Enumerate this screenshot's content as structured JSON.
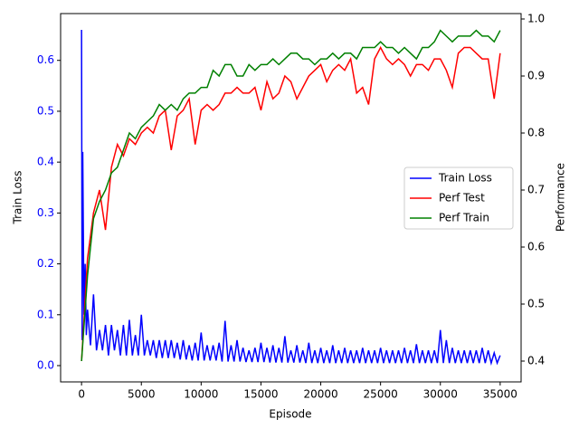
{
  "chart_data": {
    "type": "line",
    "xlabel": "Episode",
    "ylabel": "Train Loss",
    "y2label": "Performance",
    "xlim": [
      -1750,
      36750
    ],
    "ylim": [
      -0.032,
      0.692
    ],
    "y2lim": [
      0.3635,
      1.0095
    ],
    "xticks": [
      0,
      5000,
      10000,
      15000,
      20000,
      25000,
      30000,
      35000
    ],
    "yticks": [
      {
        "value": 0,
        "label": "0.0"
      },
      0.1,
      0.2,
      0.3,
      0.4,
      0.5,
      0.6
    ],
    "y2ticks": [
      0.4,
      0.5,
      0.6,
      0.7,
      0.8,
      0.9,
      {
        "value": 1,
        "label": "1.0"
      }
    ],
    "ylabel_color": "#0000ff",
    "legend": "right",
    "series": [
      {
        "name": "Train Loss",
        "color": "#0000ff",
        "x": [
          0,
          50,
          100,
          200,
          300,
          400,
          500,
          750,
          1000,
          1250,
          1500,
          1750,
          2000,
          2250,
          2500,
          2750,
          3000,
          3250,
          3500,
          3750,
          4000,
          4250,
          4500,
          4750,
          5000,
          5250,
          5500,
          5750,
          6000,
          6250,
          6500,
          6750,
          7000,
          7250,
          7500,
          7750,
          8000,
          8250,
          8500,
          8750,
          9000,
          9250,
          9500,
          9750,
          10000,
          10250,
          10500,
          10750,
          11000,
          11250,
          11500,
          11750,
          12000,
          12250,
          12500,
          12750,
          13000,
          13250,
          13500,
          13750,
          14000,
          14250,
          14500,
          14750,
          15000,
          15250,
          15500,
          15750,
          16000,
          16250,
          16500,
          16750,
          17000,
          17250,
          17500,
          17750,
          18000,
          18250,
          18500,
          18750,
          19000,
          19250,
          19500,
          19750,
          20000,
          20250,
          20500,
          20750,
          21000,
          21250,
          21500,
          21750,
          22000,
          22250,
          22500,
          22750,
          23000,
          23250,
          23500,
          23750,
          24000,
          24250,
          24500,
          24750,
          25000,
          25250,
          25500,
          25750,
          26000,
          26250,
          26500,
          26750,
          27000,
          27250,
          27500,
          27750,
          28000,
          28250,
          28500,
          28750,
          29000,
          29250,
          29500,
          29750,
          30000,
          30250,
          30500,
          30750,
          31000,
          31250,
          31500,
          31750,
          32000,
          32250,
          32500,
          32750,
          33000,
          33250,
          33500,
          33750,
          34000,
          34250,
          34500,
          34750,
          35000
        ],
        "values": [
          0.66,
          0.05,
          0.42,
          0.1,
          0.2,
          0.06,
          0.11,
          0.04,
          0.14,
          0.03,
          0.07,
          0.03,
          0.08,
          0.02,
          0.08,
          0.03,
          0.07,
          0.02,
          0.08,
          0.02,
          0.09,
          0.02,
          0.06,
          0.02,
          0.1,
          0.02,
          0.05,
          0.02,
          0.05,
          0.015,
          0.05,
          0.015,
          0.05,
          0.015,
          0.05,
          0.015,
          0.045,
          0.012,
          0.05,
          0.012,
          0.04,
          0.01,
          0.045,
          0.01,
          0.065,
          0.01,
          0.04,
          0.01,
          0.04,
          0.01,
          0.045,
          0.008,
          0.088,
          0.008,
          0.04,
          0.008,
          0.05,
          0.008,
          0.035,
          0.007,
          0.03,
          0.007,
          0.035,
          0.007,
          0.045,
          0.007,
          0.035,
          0.006,
          0.04,
          0.006,
          0.035,
          0.006,
          0.058,
          0.006,
          0.03,
          0.006,
          0.04,
          0.006,
          0.03,
          0.005,
          0.045,
          0.005,
          0.03,
          0.005,
          0.035,
          0.005,
          0.03,
          0.005,
          0.04,
          0.005,
          0.03,
          0.005,
          0.035,
          0.005,
          0.03,
          0.005,
          0.03,
          0.005,
          0.035,
          0.005,
          0.03,
          0.005,
          0.03,
          0.005,
          0.035,
          0.005,
          0.03,
          0.005,
          0.03,
          0.005,
          0.03,
          0.005,
          0.035,
          0.005,
          0.03,
          0.005,
          0.042,
          0.005,
          0.03,
          0.005,
          0.03,
          0.005,
          0.03,
          0.005,
          0.07,
          0.005,
          0.05,
          0.005,
          0.035,
          0.005,
          0.03,
          0.005,
          0.03,
          0.005,
          0.03,
          0.005,
          0.03,
          0.005,
          0.035,
          0.005,
          0.03,
          0.005,
          0.025,
          0.005,
          0.02
        ]
      },
      {
        "name": "Perf Test",
        "color": "#ff0000",
        "axis": "y2",
        "x": [
          0,
          500,
          1000,
          1500,
          2000,
          2500,
          3000,
          3500,
          4000,
          4500,
          5000,
          5500,
          6000,
          6500,
          7000,
          7500,
          8000,
          8500,
          9000,
          9500,
          10000,
          10500,
          11000,
          11500,
          12000,
          12500,
          13000,
          13500,
          14000,
          14500,
          15000,
          15500,
          16000,
          16500,
          17000,
          17500,
          18000,
          18500,
          19000,
          19500,
          20000,
          20500,
          21000,
          21500,
          22000,
          22500,
          23000,
          23500,
          24000,
          24500,
          25000,
          25500,
          26000,
          26500,
          27000,
          27500,
          28000,
          28500,
          29000,
          29500,
          30000,
          30500,
          31000,
          31500,
          32000,
          32500,
          33000,
          33500,
          34000,
          34500,
          35000
        ],
        "values": [
          0.4,
          0.58,
          0.66,
          0.7,
          0.63,
          0.74,
          0.78,
          0.76,
          0.79,
          0.78,
          0.8,
          0.81,
          0.8,
          0.83,
          0.84,
          0.77,
          0.83,
          0.84,
          0.86,
          0.78,
          0.84,
          0.85,
          0.84,
          0.85,
          0.87,
          0.87,
          0.88,
          0.87,
          0.87,
          0.88,
          0.84,
          0.89,
          0.86,
          0.87,
          0.9,
          0.89,
          0.86,
          0.88,
          0.9,
          0.91,
          0.92,
          0.89,
          0.91,
          0.92,
          0.91,
          0.93,
          0.87,
          0.88,
          0.85,
          0.93,
          0.95,
          0.93,
          0.92,
          0.93,
          0.92,
          0.9,
          0.92,
          0.92,
          0.91,
          0.93,
          0.93,
          0.91,
          0.88,
          0.94,
          0.95,
          0.95,
          0.94,
          0.93,
          0.93,
          0.86,
          0.94
        ]
      },
      {
        "name": "Perf Train",
        "color": "#008000",
        "axis": "y2",
        "x": [
          0,
          500,
          1000,
          1500,
          2000,
          2500,
          3000,
          3500,
          4000,
          4500,
          5000,
          5500,
          6000,
          6500,
          7000,
          7500,
          8000,
          8500,
          9000,
          9500,
          10000,
          10500,
          11000,
          11500,
          12000,
          12500,
          13000,
          13500,
          14000,
          14500,
          15000,
          15500,
          16000,
          16500,
          17000,
          17500,
          18000,
          18500,
          19000,
          19500,
          20000,
          20500,
          21000,
          21500,
          22000,
          22500,
          23000,
          23500,
          24000,
          24500,
          25000,
          25500,
          26000,
          26500,
          27000,
          27500,
          28000,
          28500,
          29000,
          29500,
          30000,
          30500,
          31000,
          31500,
          32000,
          32500,
          33000,
          33500,
          34000,
          34500,
          35000
        ],
        "values": [
          0.4,
          0.55,
          0.65,
          0.68,
          0.7,
          0.73,
          0.74,
          0.77,
          0.8,
          0.79,
          0.81,
          0.82,
          0.83,
          0.85,
          0.84,
          0.85,
          0.84,
          0.86,
          0.87,
          0.87,
          0.88,
          0.88,
          0.91,
          0.9,
          0.92,
          0.92,
          0.9,
          0.9,
          0.92,
          0.91,
          0.92,
          0.92,
          0.93,
          0.92,
          0.93,
          0.94,
          0.94,
          0.93,
          0.93,
          0.92,
          0.93,
          0.93,
          0.94,
          0.93,
          0.94,
          0.94,
          0.93,
          0.95,
          0.95,
          0.95,
          0.96,
          0.95,
          0.95,
          0.94,
          0.95,
          0.94,
          0.93,
          0.95,
          0.95,
          0.96,
          0.98,
          0.97,
          0.96,
          0.97,
          0.97,
          0.97,
          0.98,
          0.97,
          0.97,
          0.96,
          0.98
        ]
      }
    ]
  }
}
